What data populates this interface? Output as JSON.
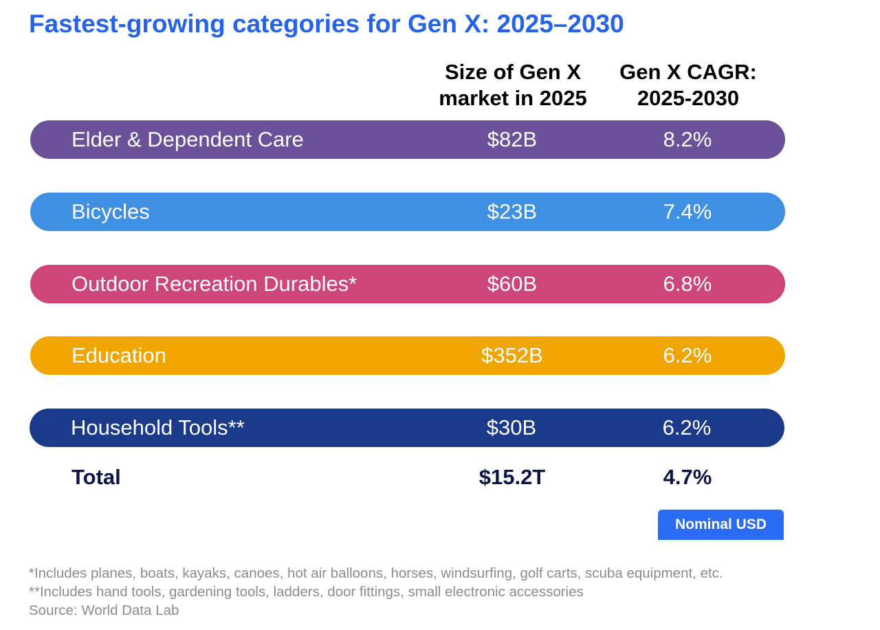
{
  "title": "Fastest-growing categories for Gen X: 2025–2030",
  "columns": {
    "size": [
      "Size of Gen X",
      "market in 2025"
    ],
    "cagr": [
      "Gen X CAGR:",
      "2025-2030"
    ]
  },
  "chart_data": {
    "type": "table",
    "title": "Fastest-growing categories for Gen X: 2025–2030",
    "columns": [
      "Size of Gen X market in 2025",
      "Gen X CAGR: 2025-2030"
    ],
    "rows": [
      {
        "category": "Elder & Dependent Care",
        "size": "$82B",
        "cagr": "8.2%",
        "color": "#6a5199"
      },
      {
        "category": "Bicycles",
        "size": "$23B",
        "cagr": "7.4%",
        "color": "#3f8fe3"
      },
      {
        "category": "Outdoor Recreation Durables*",
        "size": "$60B",
        "cagr": "6.8%",
        "color": "#cd4677"
      },
      {
        "category": "Education",
        "size": "$352B",
        "cagr": "6.2%",
        "color": "#f0a500"
      },
      {
        "category": "Household Tools**",
        "size": "$30B",
        "cagr": "6.2%",
        "color": "#1b3a8a"
      }
    ],
    "total": {
      "category": "Total",
      "size": "$15.2T",
      "cagr": "4.7%"
    }
  },
  "badge": "Nominal USD",
  "footnotes": [
    "*Includes planes, boats, kayaks, canoes, hot air balloons, horses, windsurfing, golf carts, scuba equipment, etc.",
    "**Includes hand tools, gardening tools, ladders, door fittings, small electronic accessories",
    "Source: World Data Lab"
  ]
}
